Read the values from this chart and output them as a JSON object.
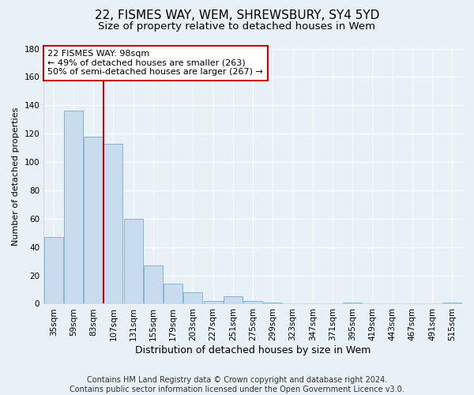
{
  "title": "22, FISMES WAY, WEM, SHREWSBURY, SY4 5YD",
  "subtitle": "Size of property relative to detached houses in Wem",
  "xlabel": "Distribution of detached houses by size in Wem",
  "ylabel": "Number of detached properties",
  "categories": [
    "35sqm",
    "59sqm",
    "83sqm",
    "107sqm",
    "131sqm",
    "155sqm",
    "179sqm",
    "203sqm",
    "227sqm",
    "251sqm",
    "275sqm",
    "299sqm",
    "323sqm",
    "347sqm",
    "371sqm",
    "395sqm",
    "419sqm",
    "443sqm",
    "467sqm",
    "491sqm",
    "515sqm"
  ],
  "values": [
    47,
    136,
    118,
    113,
    60,
    27,
    14,
    8,
    2,
    5,
    2,
    1,
    0,
    0,
    0,
    1,
    0,
    0,
    0,
    0,
    1
  ],
  "bar_color": "#c9dced",
  "bar_edge_color": "#88b4d4",
  "background_color": "#e8f0f8",
  "plot_bg_color": "#e8f0f8",
  "grid_color": "#ffffff",
  "vline_color": "#cc0000",
  "annotation_text": "22 FISMES WAY: 98sqm\n← 49% of detached houses are smaller (263)\n50% of semi-detached houses are larger (267) →",
  "annotation_box_color": "#ffffff",
  "annotation_box_edge_color": "#cc0000",
  "ylim": [
    0,
    180
  ],
  "yticks": [
    0,
    20,
    40,
    60,
    80,
    100,
    120,
    140,
    160,
    180
  ],
  "footer": "Contains HM Land Registry data © Crown copyright and database right 2024.\nContains public sector information licensed under the Open Government Licence v3.0.",
  "title_fontsize": 11,
  "subtitle_fontsize": 9.5,
  "xlabel_fontsize": 9,
  "ylabel_fontsize": 8,
  "tick_fontsize": 7.5,
  "annotation_fontsize": 8,
  "footer_fontsize": 7
}
